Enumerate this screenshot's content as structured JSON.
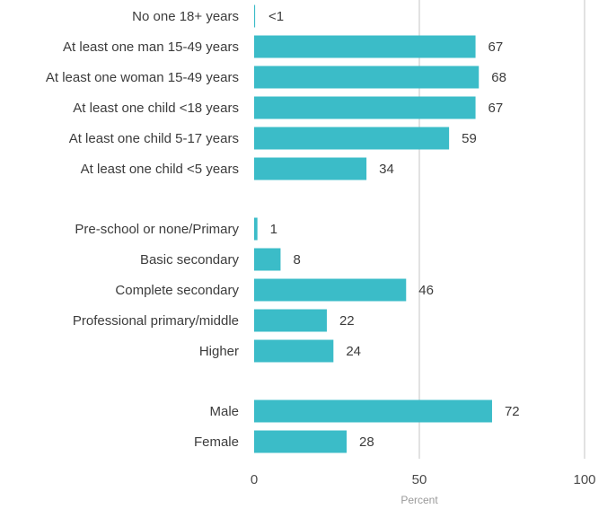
{
  "chart_data": {
    "type": "bar",
    "orientation": "horizontal",
    "bar_color": "#3bbcc8",
    "grid_color": "#d9d9d9",
    "xlabel": "Percent",
    "xlim": [
      0,
      100
    ],
    "xticks": [
      0,
      50,
      100
    ],
    "grid": true,
    "groups": [
      {
        "categories": [
          "No one 18+ years",
          "At least one man 15-49 years",
          "At least one woman 15-49 years",
          "At least one child <18 years",
          "At least one child 5-17 years",
          "At least one child <5 years"
        ],
        "values": [
          0.3,
          67,
          68,
          67,
          59,
          34
        ],
        "value_labels": [
          "<1",
          "67",
          "68",
          "67",
          "59",
          "34"
        ]
      },
      {
        "categories": [
          "Pre-school or none/Primary",
          "Basic secondary",
          "Complete secondary",
          "Professional primary/middle",
          "Higher"
        ],
        "values": [
          1,
          8,
          46,
          22,
          24
        ],
        "value_labels": [
          "1",
          "8",
          "46",
          "22",
          "24"
        ]
      },
      {
        "categories": [
          "Male",
          "Female"
        ],
        "values": [
          72,
          28
        ],
        "value_labels": [
          "72",
          "28"
        ]
      }
    ]
  }
}
